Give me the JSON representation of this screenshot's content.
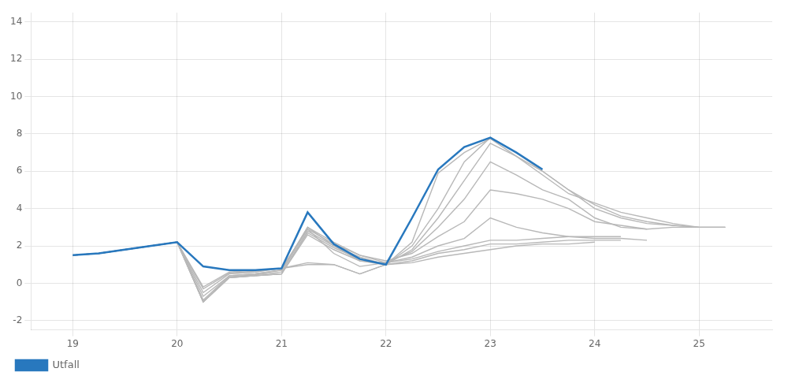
{
  "chart_data": {
    "type": "line",
    "xlim": [
      18.6,
      25.7
    ],
    "ylim": [
      -2.5,
      14.5
    ],
    "xticks": [
      19,
      20,
      21,
      22,
      23,
      24,
      25
    ],
    "yticks": [
      -2,
      0,
      2,
      4,
      6,
      8,
      10,
      12,
      14
    ],
    "grid": true,
    "legend": "bottom-left",
    "series": [
      {
        "color": "#b8b8b8",
        "x": [
          19.0,
          19.25,
          19.5,
          19.75,
          20.0,
          20.25,
          20.5,
          20.75,
          21.0,
          21.25,
          21.5,
          21.75,
          22.0,
          22.25,
          22.5,
          22.75,
          23.0,
          23.25,
          23.5,
          23.75,
          24.0
        ],
        "values": [
          1.5,
          1.6,
          1.8,
          2.0,
          2.2,
          -0.2,
          0.6,
          0.7,
          0.8,
          1.0,
          1.0,
          0.5,
          1.0,
          1.1,
          1.4,
          1.6,
          1.8,
          2.0,
          2.1,
          2.1,
          2.2
        ]
      },
      {
        "color": "#b8b8b8",
        "x": [
          19.0,
          19.25,
          19.5,
          19.75,
          20.0,
          20.25,
          20.5,
          20.75,
          21.0,
          21.25,
          21.5,
          21.75,
          22.0,
          22.25,
          22.5,
          22.75,
          23.0,
          23.25,
          23.5,
          23.75,
          24.0,
          24.25
        ],
        "values": [
          1.5,
          1.6,
          1.8,
          2.0,
          2.2,
          -0.3,
          0.55,
          0.65,
          0.8,
          1.1,
          1.0,
          0.5,
          1.0,
          1.2,
          1.6,
          1.8,
          2.1,
          2.1,
          2.2,
          2.3,
          2.3,
          2.3
        ]
      },
      {
        "color": "#b8b8b8",
        "x": [
          19.0,
          19.25,
          19.5,
          19.75,
          20.0,
          20.25,
          20.5,
          20.75,
          21.0,
          21.25,
          21.5,
          21.75,
          22.0,
          22.25,
          22.5,
          22.75,
          23.0,
          23.25,
          23.5,
          23.75,
          24.0,
          24.25
        ],
        "values": [
          1.5,
          1.6,
          1.8,
          2.0,
          2.2,
          -0.5,
          0.5,
          0.6,
          0.8,
          2.9,
          1.6,
          0.9,
          1.1,
          1.3,
          1.7,
          2.0,
          2.3,
          2.3,
          2.4,
          2.5,
          2.5,
          2.5
        ]
      },
      {
        "color": "#b8b8b8",
        "x": [
          19.0,
          19.25,
          19.5,
          19.75,
          20.0,
          20.25,
          20.5,
          20.75,
          21.0,
          21.25,
          21.5,
          21.75,
          22.0,
          22.25,
          22.5,
          22.75,
          23.0,
          23.25,
          23.5,
          23.75,
          24.0,
          24.25,
          24.5
        ],
        "values": [
          1.5,
          1.6,
          1.8,
          2.0,
          2.2,
          -0.7,
          0.4,
          0.5,
          0.7,
          3.0,
          2.0,
          1.2,
          1.1,
          1.4,
          2.0,
          2.4,
          3.5,
          3.0,
          2.7,
          2.5,
          2.4,
          2.4,
          2.3
        ]
      },
      {
        "color": "#b8b8b8",
        "x": [
          19.0,
          19.25,
          19.5,
          19.75,
          20.0,
          20.25,
          20.5,
          20.75,
          21.0,
          21.25,
          21.5,
          21.75,
          22.0,
          22.25,
          22.5,
          22.75,
          23.0,
          23.25,
          23.5,
          23.75,
          24.0,
          24.25,
          24.5
        ],
        "values": [
          1.5,
          1.6,
          1.8,
          2.0,
          2.2,
          -0.9,
          0.4,
          0.5,
          0.7,
          3.0,
          2.2,
          1.5,
          1.2,
          1.6,
          2.5,
          3.3,
          5.0,
          4.8,
          4.5,
          4.0,
          3.3,
          3.1,
          2.9
        ]
      },
      {
        "color": "#b8b8b8",
        "x": [
          19.0,
          19.25,
          19.5,
          19.75,
          20.0,
          20.25,
          20.5,
          20.75,
          21.0,
          21.25,
          21.5,
          21.75,
          22.0,
          22.25,
          22.5,
          22.75,
          23.0,
          23.25,
          23.5,
          23.75,
          24.0,
          24.25,
          24.5,
          24.75,
          25.0
        ],
        "values": [
          1.5,
          1.6,
          1.8,
          2.0,
          2.2,
          -1.0,
          0.35,
          0.45,
          0.6,
          2.9,
          2.1,
          1.5,
          1.1,
          1.7,
          3.0,
          4.5,
          6.5,
          5.8,
          5.0,
          4.5,
          3.5,
          3.0,
          2.9,
          3.0,
          3.0
        ]
      },
      {
        "color": "#b8b8b8",
        "x": [
          19.0,
          19.25,
          19.5,
          19.75,
          20.0,
          20.25,
          20.5,
          20.75,
          21.0,
          21.25,
          21.5,
          21.75,
          22.0,
          22.25,
          22.5,
          22.75,
          23.0,
          23.25,
          23.5,
          23.75,
          24.0,
          24.25,
          24.5,
          24.75,
          25.0,
          25.25
        ],
        "values": [
          1.5,
          1.6,
          1.8,
          2.0,
          2.2,
          -1.0,
          0.3,
          0.4,
          0.5,
          2.8,
          2.0,
          1.4,
          1.0,
          1.8,
          3.5,
          5.5,
          7.5,
          6.8,
          6.0,
          5.0,
          4.0,
          3.5,
          3.2,
          3.1,
          3.0,
          3.0
        ]
      },
      {
        "color": "#b8b8b8",
        "x": [
          19.0,
          19.25,
          19.5,
          19.75,
          20.0,
          20.25,
          20.5,
          20.75,
          21.0,
          21.25,
          21.5,
          21.75,
          22.0,
          22.25,
          22.5,
          22.75,
          23.0,
          23.25,
          23.5,
          23.75,
          24.0,
          24.25,
          24.5,
          24.75,
          25.0,
          25.25
        ],
        "values": [
          1.5,
          1.6,
          1.8,
          2.0,
          2.2,
          -1.0,
          0.3,
          0.4,
          0.5,
          2.7,
          1.9,
          1.3,
          1.0,
          2.0,
          4.0,
          6.5,
          7.8,
          7.0,
          6.0,
          5.0,
          4.2,
          3.6,
          3.3,
          3.1,
          3.0,
          3.0
        ]
      },
      {
        "color": "#b8b8b8",
        "x": [
          19.0,
          19.25,
          19.5,
          19.75,
          20.0,
          20.25,
          20.5,
          20.75,
          21.0,
          21.25,
          21.5,
          21.75,
          22.0,
          22.25,
          22.5,
          22.75,
          23.0,
          23.25,
          23.5,
          23.75,
          24.0,
          24.25,
          24.5,
          24.75,
          25.0,
          25.25
        ],
        "values": [
          1.5,
          1.6,
          1.8,
          2.0,
          2.2,
          -1.0,
          0.3,
          0.4,
          0.5,
          2.6,
          1.8,
          1.2,
          1.0,
          2.2,
          5.9,
          7.0,
          7.75,
          6.8,
          5.8,
          4.8,
          4.3,
          3.8,
          3.5,
          3.2,
          3.0,
          3.0
        ]
      },
      {
        "name": "Utfall",
        "color": "#2878BE",
        "x": [
          19.0,
          19.25,
          19.5,
          19.75,
          20.0,
          20.25,
          20.5,
          20.75,
          21.0,
          21.25,
          21.5,
          21.75,
          22.0,
          22.25,
          22.5,
          22.75,
          23.0,
          23.25,
          23.5
        ],
        "values": [
          1.5,
          1.6,
          1.8,
          2.0,
          2.2,
          0.9,
          0.7,
          0.7,
          0.8,
          3.8,
          2.1,
          1.3,
          1.0,
          3.5,
          6.1,
          7.3,
          7.8,
          7.0,
          6.1
        ]
      }
    ]
  }
}
